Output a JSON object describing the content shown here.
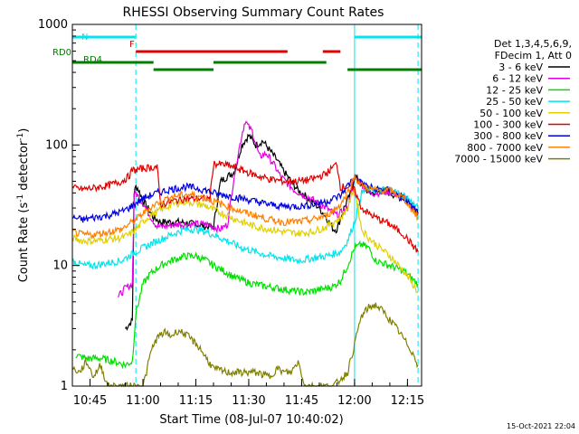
{
  "chart_data": {
    "type": "line",
    "title": "RHESSI Observing Summary Count Rates",
    "xlabel": "Start Time (08-Jul-07 10:40:02)",
    "ylabel_prefix": "Count Rate (s",
    "ylabel_exp": "-1",
    "ylabel_suffix": " detector",
    "ylabel_exp2": "-1",
    "ylabel_close": ")",
    "y_scale": "log",
    "ylim": [
      1,
      1000
    ],
    "xlim_minutes": [
      0,
      99
    ],
    "x_ticks": [
      {
        "label": "10:45",
        "min": 5
      },
      {
        "label": "11:00",
        "min": 20
      },
      {
        "label": "11:15",
        "min": 35
      },
      {
        "label": "11:30",
        "min": 50
      },
      {
        "label": "11:45",
        "min": 65
      },
      {
        "label": "12:00",
        "min": 80
      },
      {
        "label": "12:15",
        "min": 95
      }
    ],
    "y_ticks": [
      {
        "label": "1",
        "value": 1
      },
      {
        "label": "10",
        "value": 10
      },
      {
        "label": "100",
        "value": 100
      },
      {
        "label": "1000",
        "value": 1000
      }
    ],
    "legend_header": [
      "Det 1,3,4,5,6,9,",
      "FDecim 1, Att 0"
    ],
    "timestamp": "15-Oct-2021 22:04",
    "flag_labels": {
      "N": "N",
      "F": "F",
      "RD0": "RD0",
      "RD4": "RD4"
    },
    "flags": [
      {
        "name": "N",
        "color": "#00e5ee",
        "level": 1.0,
        "spans": [
          [
            0,
            18
          ],
          [
            80,
            99
          ]
        ]
      },
      {
        "name": "F",
        "color": "#e00000",
        "level": 0.92,
        "spans": [
          [
            18,
            61
          ],
          [
            71,
            76
          ]
        ]
      },
      {
        "name": "RD0",
        "color": "#007f00",
        "level": 0.86,
        "spans": [
          [
            0,
            23
          ],
          [
            40,
            72
          ]
        ]
      },
      {
        "name": "RD4",
        "color": "#007f00",
        "level": 0.82,
        "spans": [
          [
            23,
            40
          ],
          [
            78,
            99
          ]
        ]
      }
    ],
    "vlines": [
      {
        "min": 0,
        "color": "#00e5ee",
        "dashed": false
      },
      {
        "min": 18,
        "color": "#00e5ee",
        "dashed": true
      },
      {
        "min": 80,
        "color": "#00e5ee",
        "dashed": false
      },
      {
        "min": 98,
        "color": "#00e5ee",
        "dashed": true
      }
    ],
    "series": [
      {
        "name": "3 - 6 keV",
        "color": "#000000",
        "x": [
          0,
          13,
          15,
          17,
          17.5,
          18,
          18.5,
          20,
          22,
          23,
          24,
          25,
          30,
          35,
          38,
          40,
          42,
          44,
          46,
          48,
          50,
          52,
          54,
          56,
          58,
          60,
          62,
          64,
          66,
          68,
          70,
          72,
          74,
          75,
          77,
          79,
          80,
          82,
          84,
          86,
          88,
          92,
          96,
          98
        ],
        "y": [
          null,
          null,
          3.0,
          3.5,
          40,
          45,
          44,
          35,
          28,
          25,
          24,
          23,
          23,
          22,
          21,
          21,
          50,
          55,
          60,
          100,
          120,
          100,
          108,
          90,
          75,
          60,
          50,
          42,
          38,
          34,
          30,
          25,
          20,
          20,
          30,
          40,
          55,
          48,
          40,
          40,
          42,
          38,
          34,
          28
        ]
      },
      {
        "name": "6 - 12 keV",
        "color": "#e000e0",
        "x": [
          13,
          15,
          17,
          17.5,
          18,
          20,
          22,
          24,
          25,
          30,
          35,
          38,
          40,
          42,
          44,
          46,
          48,
          49,
          50,
          51,
          53,
          55,
          57,
          59,
          61,
          63,
          66,
          69,
          72,
          75,
          78,
          80,
          82,
          84,
          86,
          90,
          94,
          98
        ],
        "y": [
          5.5,
          6.5,
          7,
          38,
          40,
          33,
          26,
          21,
          21,
          22,
          22,
          22,
          21,
          20,
          22,
          60,
          120,
          160,
          140,
          130,
          80,
          85,
          70,
          55,
          48,
          42,
          38,
          34,
          30,
          26,
          30,
          54,
          48,
          40,
          40,
          41,
          37,
          27
        ]
      },
      {
        "name": "12 - 25 keV",
        "color": "#00e000",
        "x": [
          1,
          4,
          8,
          12,
          15,
          17,
          18,
          20,
          22,
          25,
          28,
          32,
          35,
          38,
          40,
          43,
          46,
          50,
          54,
          58,
          62,
          66,
          70,
          74,
          76,
          78,
          80,
          82,
          84,
          86,
          90,
          94,
          98
        ],
        "y": [
          1.8,
          1.7,
          1.7,
          1.6,
          1.5,
          1.6,
          4,
          7,
          8.5,
          10,
          11,
          12,
          12,
          11,
          10,
          9,
          8,
          7.2,
          6.8,
          6.5,
          6.2,
          6,
          6.3,
          6.7,
          7.5,
          10,
          14,
          15,
          14,
          11,
          10,
          9,
          7
        ]
      },
      {
        "name": "25 - 50 keV",
        "color": "#00e5ee",
        "x": [
          0,
          3,
          6,
          10,
          14,
          16,
          18,
          20,
          22,
          24,
          28,
          32,
          35,
          38,
          40,
          44,
          48,
          52,
          56,
          60,
          64,
          68,
          72,
          76,
          78,
          80,
          82,
          84,
          86,
          90,
          94,
          98
        ],
        "y": [
          11,
          10,
          10,
          10.5,
          11,
          12,
          13,
          14,
          15,
          16,
          18,
          20,
          20,
          19,
          18,
          16,
          14,
          13,
          12,
          11.5,
          11,
          11.5,
          12,
          13,
          16,
          23,
          40,
          44,
          42,
          43,
          38,
          30
        ]
      },
      {
        "name": "50 - 100 keV",
        "color": "#e0d000",
        "x": [
          0,
          3,
          6,
          10,
          14,
          16,
          18,
          20,
          22,
          24,
          28,
          32,
          35,
          38,
          40,
          44,
          48,
          52,
          56,
          60,
          64,
          68,
          72,
          76,
          78,
          80,
          82,
          84,
          86,
          90,
          94,
          98
        ],
        "y": [
          17,
          16,
          16,
          16.5,
          17,
          18,
          20,
          23,
          26,
          28,
          32,
          34,
          33,
          31,
          29,
          26,
          23,
          21,
          20,
          19,
          18.5,
          19,
          21,
          25,
          30,
          45,
          20,
          17,
          15,
          12,
          9,
          6
        ]
      },
      {
        "name": "100 - 300 keV",
        "color": "#e00000",
        "x": [
          0,
          3,
          6,
          10,
          14,
          16,
          17,
          18,
          20,
          22,
          24,
          25,
          28,
          32,
          35,
          38,
          39,
          40,
          44,
          48,
          52,
          56,
          60,
          64,
          68,
          72,
          74,
          75,
          76,
          78,
          80,
          82,
          84,
          86,
          90,
          94,
          98
        ],
        "y": [
          44,
          43,
          44,
          46,
          50,
          55,
          62,
          62,
          64,
          65,
          66,
          32,
          34,
          36,
          36,
          36,
          36,
          70,
          68,
          62,
          56,
          52,
          50,
          50,
          52,
          58,
          66,
          70,
          45,
          45,
          42,
          30,
          27,
          25,
          22,
          18,
          13
        ]
      },
      {
        "name": "300 - 800 keV",
        "color": "#0000e0",
        "x": [
          0,
          3,
          6,
          10,
          14,
          16,
          18,
          20,
          22,
          24,
          28,
          32,
          35,
          38,
          40,
          44,
          48,
          52,
          56,
          60,
          64,
          68,
          72,
          76,
          78,
          80,
          82,
          84,
          86,
          90,
          94,
          98
        ],
        "y": [
          25,
          24,
          25,
          26,
          28,
          30,
          33,
          36,
          38,
          40,
          43,
          45,
          44,
          42,
          40,
          38,
          36,
          34,
          32,
          31,
          31,
          32,
          34,
          38,
          46,
          55,
          48,
          45,
          43,
          42,
          36,
          27
        ]
      },
      {
        "name": "800 - 7000 keV",
        "color": "#ff8000",
        "x": [
          0,
          3,
          6,
          10,
          14,
          16,
          18,
          20,
          22,
          24,
          28,
          32,
          35,
          38,
          40,
          44,
          48,
          52,
          56,
          60,
          64,
          68,
          72,
          76,
          78,
          80,
          82,
          84,
          86,
          90,
          94,
          98
        ],
        "y": [
          19,
          18,
          18,
          19,
          20,
          22,
          24,
          27,
          30,
          33,
          37,
          39,
          38,
          36,
          34,
          31,
          28,
          26,
          24,
          23,
          23,
          24,
          26,
          32,
          40,
          55,
          46,
          44,
          42,
          42,
          36,
          25
        ]
      },
      {
        "name": "7000 - 15000 keV",
        "color": "#808000",
        "x": [
          0,
          2,
          4,
          6,
          8,
          10,
          14,
          18,
          20,
          21,
          22,
          23,
          24,
          26,
          28,
          30,
          32,
          34,
          36,
          38,
          40,
          44,
          48,
          52,
          56,
          58,
          60,
          62,
          64,
          66,
          70,
          74,
          78,
          80,
          81,
          82,
          84,
          86,
          88,
          92,
          96,
          98
        ],
        "y": [
          1.4,
          1.3,
          1.6,
          1.2,
          1.5,
          1.0,
          1.0,
          1.0,
          1.0,
          1.3,
          1.8,
          2.2,
          2.5,
          2.8,
          2.6,
          2.9,
          2.7,
          2.4,
          2.1,
          1.7,
          1.4,
          1.3,
          1.3,
          1.3,
          1.2,
          1.4,
          1.3,
          1.3,
          1.6,
          1.0,
          1.0,
          1.0,
          1.3,
          2.2,
          3.0,
          3.8,
          4.5,
          4.7,
          4.2,
          3.0,
          2.0,
          1.5
        ]
      }
    ]
  }
}
